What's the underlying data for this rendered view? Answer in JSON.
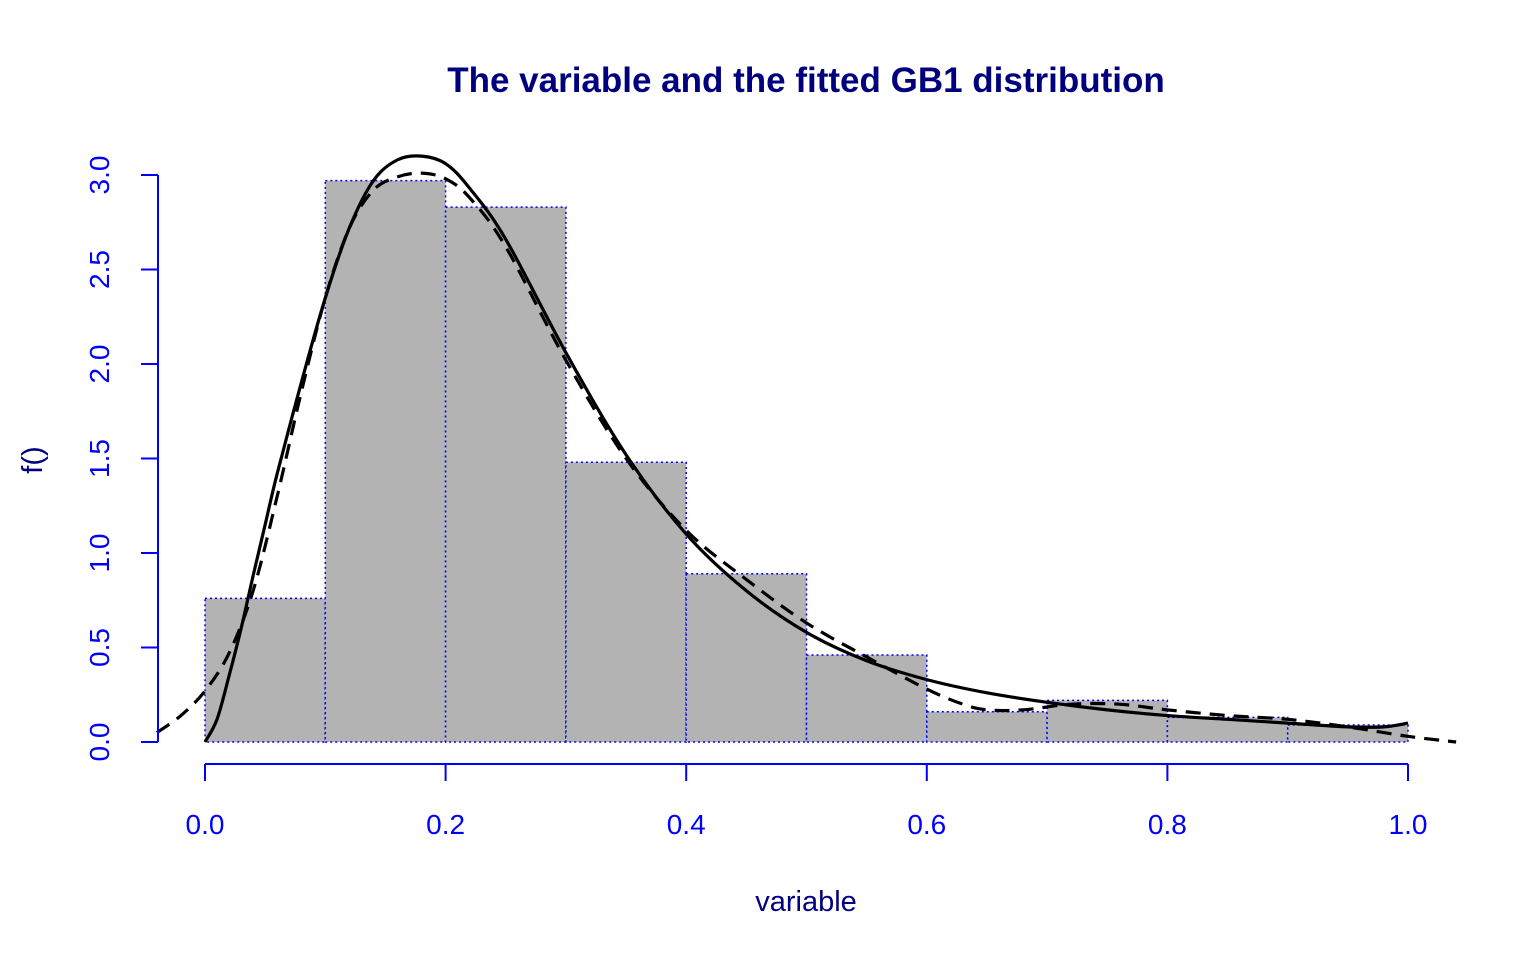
{
  "chart_data": {
    "type": "bar",
    "title": "The variable and the fitted GB1 distribution",
    "xlabel": "variable",
    "ylabel": "f()",
    "xlim": [
      0.0,
      1.0
    ],
    "ylim": [
      0.0,
      3.0
    ],
    "x_ticks": [
      "0.0",
      "0.2",
      "0.4",
      "0.6",
      "0.8",
      "1.0"
    ],
    "y_ticks": [
      "0.0",
      "0.5",
      "1.0",
      "1.5",
      "2.0",
      "2.5",
      "3.0"
    ],
    "bins": [
      {
        "x0": 0.0,
        "x1": 0.1,
        "density": 0.76
      },
      {
        "x0": 0.1,
        "x1": 0.2,
        "density": 2.97
      },
      {
        "x0": 0.2,
        "x1": 0.3,
        "density": 2.83
      },
      {
        "x0": 0.3,
        "x1": 0.4,
        "density": 1.48
      },
      {
        "x0": 0.4,
        "x1": 0.5,
        "density": 0.89
      },
      {
        "x0": 0.5,
        "x1": 0.6,
        "density": 0.46
      },
      {
        "x0": 0.6,
        "x1": 0.7,
        "density": 0.16
      },
      {
        "x0": 0.7,
        "x1": 0.8,
        "density": 0.22
      },
      {
        "x0": 0.8,
        "x1": 0.9,
        "density": 0.13
      },
      {
        "x0": 0.9,
        "x1": 1.0,
        "density": 0.09
      }
    ],
    "series": [
      {
        "style": "solid",
        "x": [
          0.0,
          0.01,
          0.02,
          0.03,
          0.04,
          0.05,
          0.06,
          0.08,
          0.1,
          0.12,
          0.14,
          0.16,
          0.18,
          0.2,
          0.22,
          0.25,
          0.3,
          0.35,
          0.4,
          0.45,
          0.5,
          0.55,
          0.6,
          0.65,
          0.7,
          0.75,
          0.8,
          0.85,
          0.9,
          0.95,
          0.98,
          1.0
        ],
        "y": [
          0.0,
          0.12,
          0.35,
          0.6,
          0.88,
          1.15,
          1.42,
          1.9,
          2.35,
          2.72,
          2.97,
          3.08,
          3.1,
          3.06,
          2.93,
          2.66,
          2.06,
          1.52,
          1.1,
          0.8,
          0.58,
          0.43,
          0.33,
          0.26,
          0.21,
          0.17,
          0.14,
          0.12,
          0.1,
          0.08,
          0.08,
          0.1
        ]
      },
      {
        "style": "dashed",
        "x": [
          -0.04,
          -0.02,
          0.0,
          0.02,
          0.04,
          0.06,
          0.08,
          0.1,
          0.12,
          0.14,
          0.16,
          0.18,
          0.2,
          0.22,
          0.25,
          0.3,
          0.35,
          0.4,
          0.45,
          0.5,
          0.55,
          0.6,
          0.63,
          0.65,
          0.68,
          0.72,
          0.76,
          0.8,
          0.85,
          0.9,
          0.95,
          1.0,
          1.04
        ],
        "y": [
          0.05,
          0.14,
          0.27,
          0.47,
          0.8,
          1.3,
          1.85,
          2.35,
          2.72,
          2.92,
          2.99,
          3.01,
          2.98,
          2.88,
          2.62,
          2.02,
          1.5,
          1.12,
          0.86,
          0.63,
          0.45,
          0.28,
          0.2,
          0.17,
          0.17,
          0.2,
          0.2,
          0.17,
          0.14,
          0.12,
          0.08,
          0.03,
          0.0
        ]
      }
    ],
    "colors": {
      "bar_fill": "#b3b3b3",
      "bar_border": "#0000ff",
      "axis": "#0000ff",
      "tick_labels": "#0000ff",
      "title": "#00007f",
      "axis_titles": "#00007f",
      "curves": "#000000"
    },
    "grid": false
  }
}
